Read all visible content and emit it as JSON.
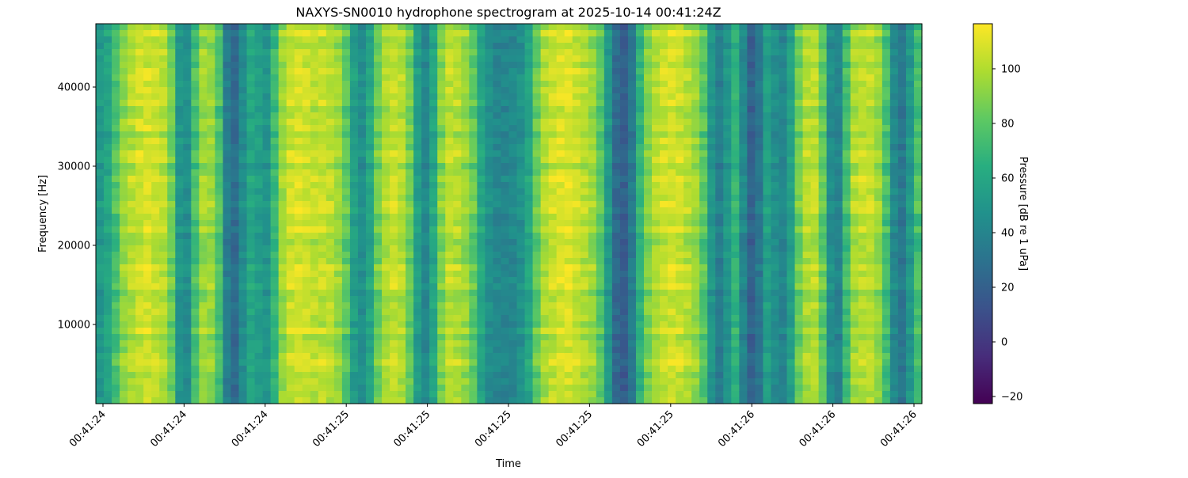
{
  "chart_data": {
    "type": "heatmap",
    "title": "NAXYS-SN0010 hydrophone spectrogram at 2025-10-14 00:41:24Z",
    "xlabel": "Time",
    "ylabel": "Frequency [Hz]",
    "x_tick_labels": [
      "00:41:24",
      "00:41:24",
      "00:41:24",
      "00:41:25",
      "00:41:25",
      "00:41:25",
      "00:41:25",
      "00:41:25",
      "00:41:26",
      "00:41:26",
      "00:41:26"
    ],
    "y_ticks": [
      10000,
      20000,
      30000,
      40000
    ],
    "ylim": [
      0,
      48000
    ],
    "colormap": "viridis",
    "colorbar": {
      "label": "Pressure [dB re 1 uPa]",
      "ticks": [
        -20,
        0,
        20,
        40,
        60,
        80,
        100
      ],
      "range": [
        -22.6,
        116.5
      ]
    },
    "time_bin_mean_db": [
      50,
      55,
      75,
      95,
      100,
      105,
      108,
      105,
      100,
      95,
      40,
      35,
      80,
      100,
      95,
      85,
      25,
      20,
      45,
      65,
      55,
      40,
      70,
      100,
      105,
      108,
      105,
      100,
      105,
      102,
      95,
      85,
      50,
      40,
      55,
      90,
      100,
      105,
      100,
      90,
      50,
      35,
      55,
      95,
      105,
      100,
      95,
      85,
      55,
      45,
      40,
      40,
      42,
      45,
      55,
      85,
      100,
      105,
      108,
      110,
      105,
      100,
      95,
      85,
      50,
      20,
      15,
      30,
      70,
      90,
      100,
      105,
      108,
      105,
      100,
      95,
      85,
      45,
      30,
      45,
      85,
      35,
      15,
      25,
      70,
      40,
      35,
      50,
      90,
      100,
      105,
      90,
      35,
      30,
      75,
      105,
      100,
      105,
      95,
      80,
      35,
      25,
      50,
      80
    ]
  }
}
